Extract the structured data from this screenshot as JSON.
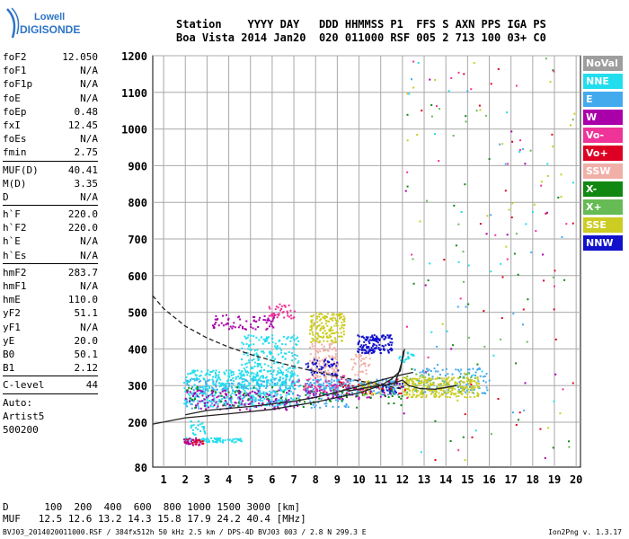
{
  "logo": {
    "line1": "Lowell",
    "line2": "DIGISONDE"
  },
  "header": {
    "row1": "Station    YYYY DAY   DDD HHMMSS P1  FFS S AXN PPS IGA PS",
    "row2": "Boa Vista 2014 Jan20  020 011000 RSF 005 2 713 100 03+ C0"
  },
  "params_a": [
    {
      "name": "foF2",
      "value": "12.050"
    },
    {
      "name": "foF1",
      "value": "N/A"
    },
    {
      "name": "foF1p",
      "value": "N/A"
    },
    {
      "name": "foE",
      "value": "N/A"
    },
    {
      "name": "foEp",
      "value": "0.48"
    },
    {
      "name": "fxI",
      "value": "12.45"
    },
    {
      "name": "foEs",
      "value": "N/A"
    },
    {
      "name": "fmin",
      "value": "2.75"
    }
  ],
  "params_b": [
    {
      "name": "MUF(D)",
      "value": "40.41"
    },
    {
      "name": "M(D)",
      "value": "3.35"
    },
    {
      "name": "D",
      "value": "N/A"
    }
  ],
  "params_c": [
    {
      "name": "h`F",
      "value": "220.0"
    },
    {
      "name": "h`F2",
      "value": "220.0"
    },
    {
      "name": "h`E",
      "value": "N/A"
    },
    {
      "name": "h`Es",
      "value": "N/A"
    }
  ],
  "params_d": [
    {
      "name": "hmF2",
      "value": "283.7"
    },
    {
      "name": "hmF1",
      "value": "N/A"
    },
    {
      "name": "hmE",
      "value": "110.0"
    },
    {
      "name": "yF2",
      "value": "51.1"
    },
    {
      "name": "yF1",
      "value": "N/A"
    },
    {
      "name": "yE",
      "value": "20.0"
    },
    {
      "name": "B0",
      "value": "50.1"
    },
    {
      "name": "B1",
      "value": "2.12"
    }
  ],
  "params_e": [
    {
      "name": "C-level",
      "value": "44"
    }
  ],
  "auto_lines": [
    "Auto:",
    "Artist5",
    "500200"
  ],
  "legend": [
    {
      "label": "NoVal",
      "color": "#9e9e9e"
    },
    {
      "label": "NNE",
      "color": "#22ddee"
    },
    {
      "label": "E",
      "color": "#44aaee"
    },
    {
      "label": "W",
      "color": "#aa00aa"
    },
    {
      "label": "Vo-",
      "color": "#ee3399"
    },
    {
      "label": "Vo+",
      "color": "#dd0022"
    },
    {
      "label": "SSW",
      "color": "#f0b0a8"
    },
    {
      "label": "X-",
      "color": "#118811"
    },
    {
      "label": "X+",
      "color": "#66bb55"
    },
    {
      "label": "SSE",
      "color": "#cccc22"
    },
    {
      "label": "NNW",
      "color": "#1111cc"
    }
  ],
  "footer": {
    "line1": "D      100  200  400  600  800 1000 1500 3000 [km]",
    "line2": "MUF   12.5 12.6 13.2 14.3 15.8 17.9 24.2 40.4 [MHz]",
    "line3": "BVJ03_2014020011000.RSF / 384fx512h 50 kHz 2.5 km / DPS-4D BVJ03 003 / 2.8 N 299.3 E",
    "version": "Ion2Png v. 1.3.17"
  },
  "chart_data": {
    "type": "scatter",
    "xlim": [
      0.5,
      20.2
    ],
    "ylim": [
      80,
      1210
    ],
    "xticks": [
      1,
      2,
      3,
      4,
      5,
      6,
      7,
      8,
      9,
      10,
      11,
      12,
      13,
      14,
      15,
      16,
      17,
      18,
      19,
      20
    ],
    "yticks": [
      80,
      200,
      300,
      400,
      500,
      600,
      700,
      800,
      900,
      1000,
      1100,
      1200
    ],
    "xlabel": "",
    "ylabel": "",
    "grid": true,
    "clusters": [
      {
        "series": "NNE",
        "x": [
          1.9,
          7.0
        ],
        "y": [
          245,
          345
        ],
        "n": 450
      },
      {
        "series": "NNE",
        "x": [
          4.5,
          7.2
        ],
        "y": [
          300,
          440
        ],
        "n": 220
      },
      {
        "series": "NNE",
        "x": [
          1.9,
          4.6
        ],
        "y": [
          148,
          160
        ],
        "n": 70
      },
      {
        "series": "NNE",
        "x": [
          2.2,
          2.9
        ],
        "y": [
          168,
          205
        ],
        "n": 25
      },
      {
        "series": "E",
        "x": [
          2.0,
          9.5
        ],
        "y": [
          240,
          320
        ],
        "n": 260
      },
      {
        "series": "E",
        "x": [
          7.5,
          11.8
        ],
        "y": [
          275,
          320
        ],
        "n": 200
      },
      {
        "series": "E",
        "x": [
          12.5,
          16.0
        ],
        "y": [
          280,
          350
        ],
        "n": 110
      },
      {
        "series": "W",
        "x": [
          1.9,
          7.2
        ],
        "y": [
          235,
          290
        ],
        "n": 130
      },
      {
        "series": "W",
        "x": [
          7.5,
          11.5
        ],
        "y": [
          265,
          305
        ],
        "n": 70
      },
      {
        "series": "W",
        "x": [
          3.2,
          6.2
        ],
        "y": [
          455,
          495
        ],
        "n": 70
      },
      {
        "series": "W",
        "x": [
          1.9,
          2.7
        ],
        "y": [
          140,
          160
        ],
        "n": 25
      },
      {
        "series": "Vo-",
        "x": [
          5.8,
          7.0
        ],
        "y": [
          485,
          525
        ],
        "n": 40
      },
      {
        "series": "Vo-",
        "x": [
          6.8,
          9.8
        ],
        "y": [
          285,
          330
        ],
        "n": 45
      },
      {
        "series": "Vo+",
        "x": [
          1.9,
          2.8
        ],
        "y": [
          143,
          157
        ],
        "n": 18
      },
      {
        "series": "Vo+",
        "x": [
          9.0,
          12.0
        ],
        "y": [
          280,
          320
        ],
        "n": 40
      },
      {
        "series": "SSW",
        "x": [
          7.7,
          9.0
        ],
        "y": [
          320,
          420
        ],
        "n": 130
      },
      {
        "series": "SSW",
        "x": [
          9.6,
          10.5
        ],
        "y": [
          330,
          400
        ],
        "n": 40
      },
      {
        "series": "X-",
        "x": [
          2.0,
          12.0
        ],
        "y": [
          240,
          300
        ],
        "n": 80
      },
      {
        "series": "X+",
        "x": [
          12.0,
          15.5
        ],
        "y": [
          280,
          335
        ],
        "n": 40
      },
      {
        "series": "SSE",
        "x": [
          7.7,
          9.3
        ],
        "y": [
          420,
          500
        ],
        "n": 160
      },
      {
        "series": "SSE",
        "x": [
          12.0,
          15.5
        ],
        "y": [
          270,
          325
        ],
        "n": 280
      },
      {
        "series": "SSE",
        "x": [
          10.0,
          11.0
        ],
        "y": [
          275,
          315
        ],
        "n": 30
      },
      {
        "series": "NNW",
        "x": [
          9.9,
          11.5
        ],
        "y": [
          390,
          440
        ],
        "n": 140
      },
      {
        "series": "NNW",
        "x": [
          7.5,
          9.0
        ],
        "y": [
          330,
          375
        ],
        "n": 50
      },
      {
        "series": "NNW",
        "x": [
          11.0,
          12.0
        ],
        "y": [
          280,
          310
        ],
        "n": 20
      },
      {
        "series": "NNE",
        "x": [
          11.8,
          12.5
        ],
        "y": [
          365,
          395
        ],
        "n": 20
      },
      {
        "series": "mixed",
        "x": [
          12.0,
          20.0
        ],
        "y": [
          100,
          1200
        ],
        "n": 190
      }
    ],
    "profile_solid": {
      "x": [
        0.5,
        2,
        4,
        6,
        8,
        10,
        11,
        11.5,
        11.9,
        12.05
      ],
      "y": [
        195,
        212,
        223,
        235,
        255,
        280,
        300,
        318,
        340,
        395
      ]
    },
    "trace_solid": {
      "x": [
        2,
        3,
        4,
        5,
        6,
        7,
        8,
        9,
        10,
        11,
        12,
        12.5
      ],
      "y": [
        220,
        232,
        238,
        243,
        250,
        257,
        268,
        282,
        298,
        315,
        330,
        336
      ]
    },
    "profile_dashed": {
      "x": [
        0.5,
        1,
        2,
        3,
        4,
        5,
        6,
        7,
        8,
        9,
        10,
        11,
        12.05
      ],
      "y": [
        545,
        510,
        462,
        430,
        405,
        385,
        368,
        352,
        338,
        325,
        313,
        302,
        290
      ]
    },
    "trace_inner": {
      "x": [
        9.5,
        10.5,
        11.5,
        12.0,
        12.3,
        12.8,
        13.5,
        14.5
      ],
      "y": [
        285,
        296,
        305,
        315,
        300,
        292,
        290,
        300
      ]
    },
    "cusp_line": {
      "x": [
        11.6,
        11.8,
        12.0,
        12.1
      ],
      "y": [
        300,
        330,
        370,
        400
      ]
    }
  }
}
